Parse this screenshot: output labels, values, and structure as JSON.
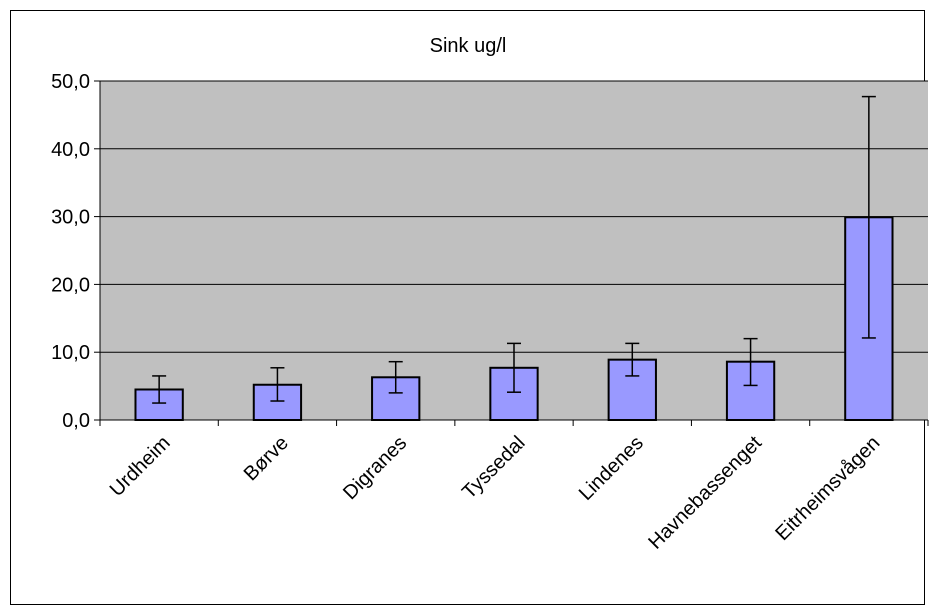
{
  "chart_data": {
    "type": "bar",
    "title": "Sink ug/l",
    "xlabel": "",
    "ylabel": "",
    "categories": [
      "Urdheim",
      "Børve",
      "Digranes",
      "Tyssedal",
      "Lindenes",
      "Havnebassenget",
      "Eitrheimsvågen"
    ],
    "series": [
      {
        "values": [
          4.5,
          5.2,
          6.3,
          7.7,
          8.9,
          8.6,
          29.9
        ],
        "error_low": [
          2.5,
          2.8,
          4.0,
          4.1,
          6.5,
          5.1,
          12.1
        ],
        "error_high": [
          6.5,
          7.7,
          8.6,
          11.3,
          11.3,
          12.0,
          47.7
        ]
      }
    ],
    "ylim": [
      0,
      50
    ],
    "yticks": [
      0,
      10,
      20,
      30,
      40,
      50
    ],
    "ytick_labels": [
      "0,0",
      "10,0",
      "20,0",
      "30,0",
      "40,0",
      "50,0"
    ],
    "grid": true,
    "legend": "none",
    "colors": {
      "bar_fill": "#9999ff",
      "plot_background": "#c0c0c0",
      "gridline": "#000000",
      "axis": "#000000"
    }
  }
}
